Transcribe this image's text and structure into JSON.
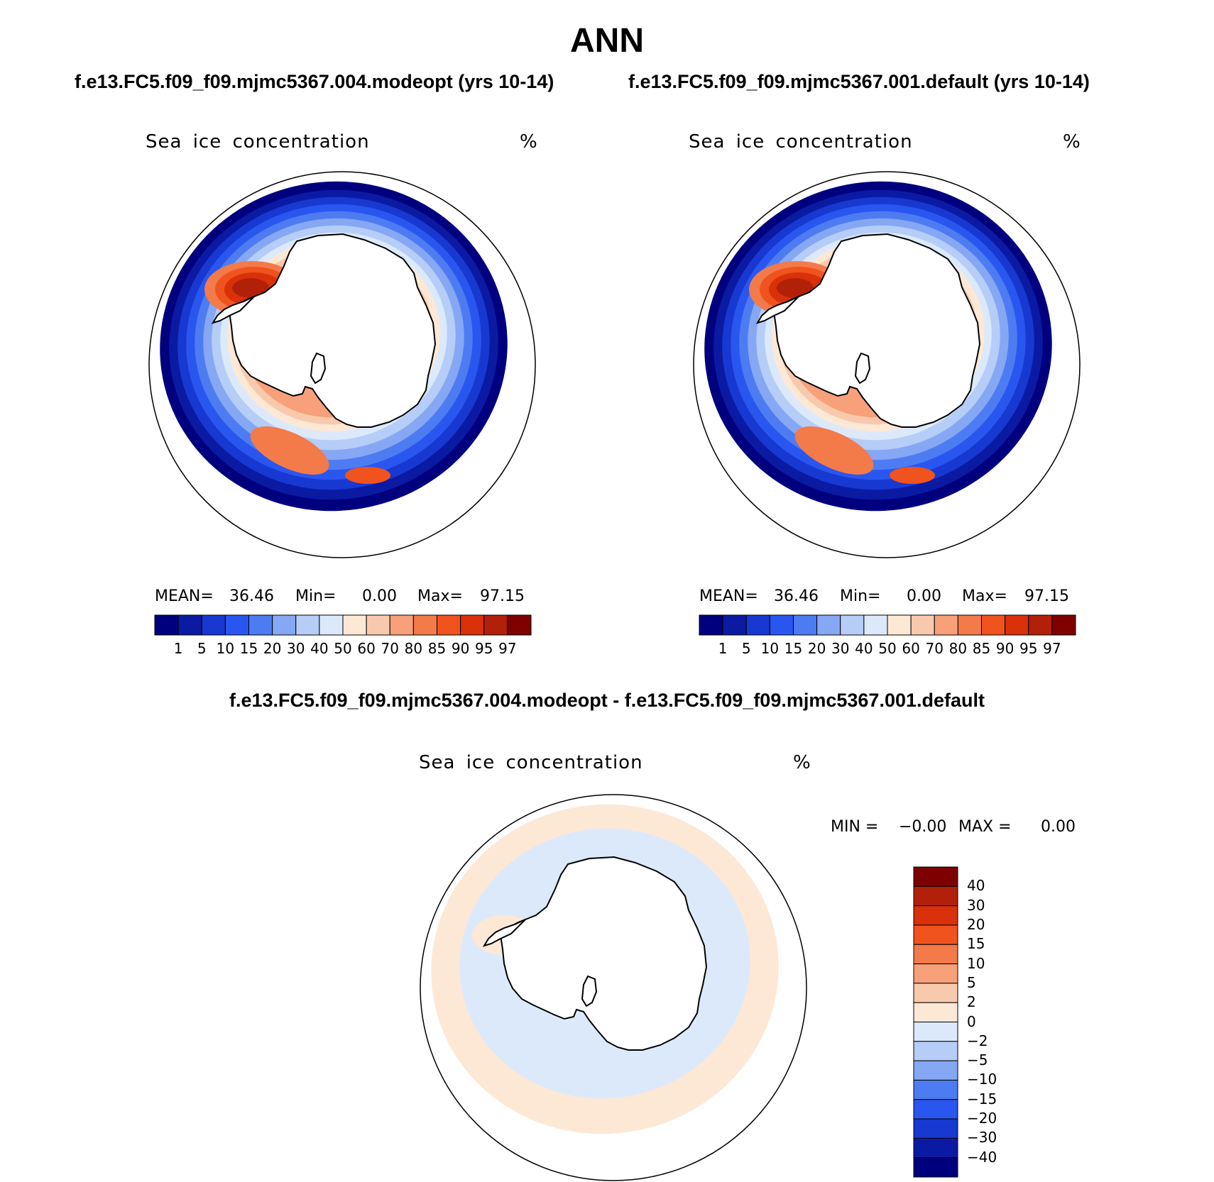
{
  "title": "ANN",
  "panels": [
    {
      "case_title": "f.e13.FC5.f09_f09.mjmc5367.004.modeopt (yrs 10-14)",
      "variable": "Sea ice concentration",
      "units": "%",
      "stats": {
        "mean_label": "MEAN=",
        "mean": "36.46",
        "min_label": "Min=",
        "min": "0.00",
        "max_label": "Max=",
        "max": "97.15"
      }
    },
    {
      "case_title": "f.e13.FC5.f09_f09.mjmc5367.001.default (yrs 10-14)",
      "variable": "Sea ice concentration",
      "units": "%",
      "stats": {
        "mean_label": "MEAN=",
        "mean": "36.46",
        "min_label": "Min=",
        "min": "0.00",
        "max_label": "Max=",
        "max": "97.15"
      }
    }
  ],
  "colorbar": {
    "labels": [
      "1",
      "5",
      "10",
      "15",
      "20",
      "30",
      "40",
      "50",
      "60",
      "70",
      "80",
      "85",
      "90",
      "95",
      "97"
    ],
    "colors": [
      "#00007f",
      "#0a1aa3",
      "#1838d2",
      "#2a56f0",
      "#4d7cf2",
      "#86a7f3",
      "#b5cdf7",
      "#dce9fb",
      "#fde8d6",
      "#f9c9ae",
      "#f7a07a",
      "#f37a49",
      "#f0531e",
      "#d93109",
      "#b2200a",
      "#7f0000"
    ]
  },
  "diff_panel": {
    "title": "f.e13.FC5.f09_f09.mjmc5367.004.modeopt - f.e13.FC5.f09_f09.mjmc5367.001.default",
    "variable": "Sea ice concentration",
    "units": "%",
    "min_label": "MIN =",
    "min": "−0.00",
    "max_label": "MAX =",
    "max": "0.00",
    "colorbar": {
      "labels": [
        "40",
        "30",
        "20",
        "15",
        "10",
        "5",
        "2",
        "0",
        "−2",
        "−5",
        "−10",
        "−15",
        "−20",
        "−30",
        "−40"
      ],
      "colors": [
        "#7f0000",
        "#b2200a",
        "#d93109",
        "#f0531e",
        "#f37a49",
        "#f7a07a",
        "#f9c9ae",
        "#fde8d6",
        "#dce9fb",
        "#b5cdf7",
        "#86a7f3",
        "#4d7cf2",
        "#2a56f0",
        "#1838d2",
        "#0a1aa3",
        "#00007f"
      ]
    }
  }
}
